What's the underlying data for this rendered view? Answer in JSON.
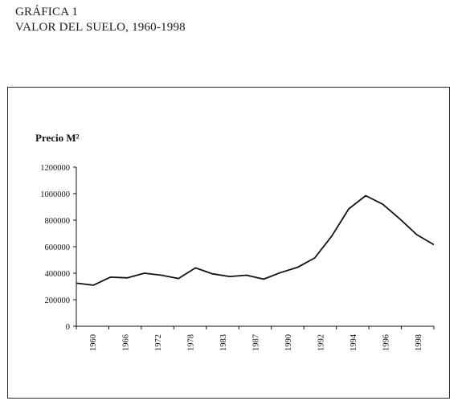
{
  "heading": {
    "figure_label": "GRÁFICA 1",
    "figure_title": "VALOR DEL SUELO, 1960-1998"
  },
  "chart_data": {
    "type": "line",
    "title": "VALOR DEL SUELO, 1960-1998",
    "ylabel": "Precio M²",
    "xlabel": "",
    "ylim": [
      0,
      1200000
    ],
    "yticks": [
      0,
      200000,
      400000,
      600000,
      800000,
      1000000,
      1200000
    ],
    "ytick_labels": [
      "0",
      "200000",
      "400000",
      "600000",
      "800000",
      "1000000",
      "1200000"
    ],
    "xtick_labels": [
      "1960",
      "1966",
      "1972",
      "1978",
      "1983",
      "1987",
      "1990",
      "1992",
      "1994",
      "1996",
      "1998"
    ],
    "grid": false,
    "legend": "none",
    "line_color": "#111111",
    "values": [
      325000,
      310000,
      370000,
      365000,
      400000,
      385000,
      360000,
      440000,
      395000,
      375000,
      385000,
      355000,
      405000,
      445000,
      515000,
      680000,
      885000,
      985000,
      920000,
      810000,
      690000,
      615000
    ]
  }
}
